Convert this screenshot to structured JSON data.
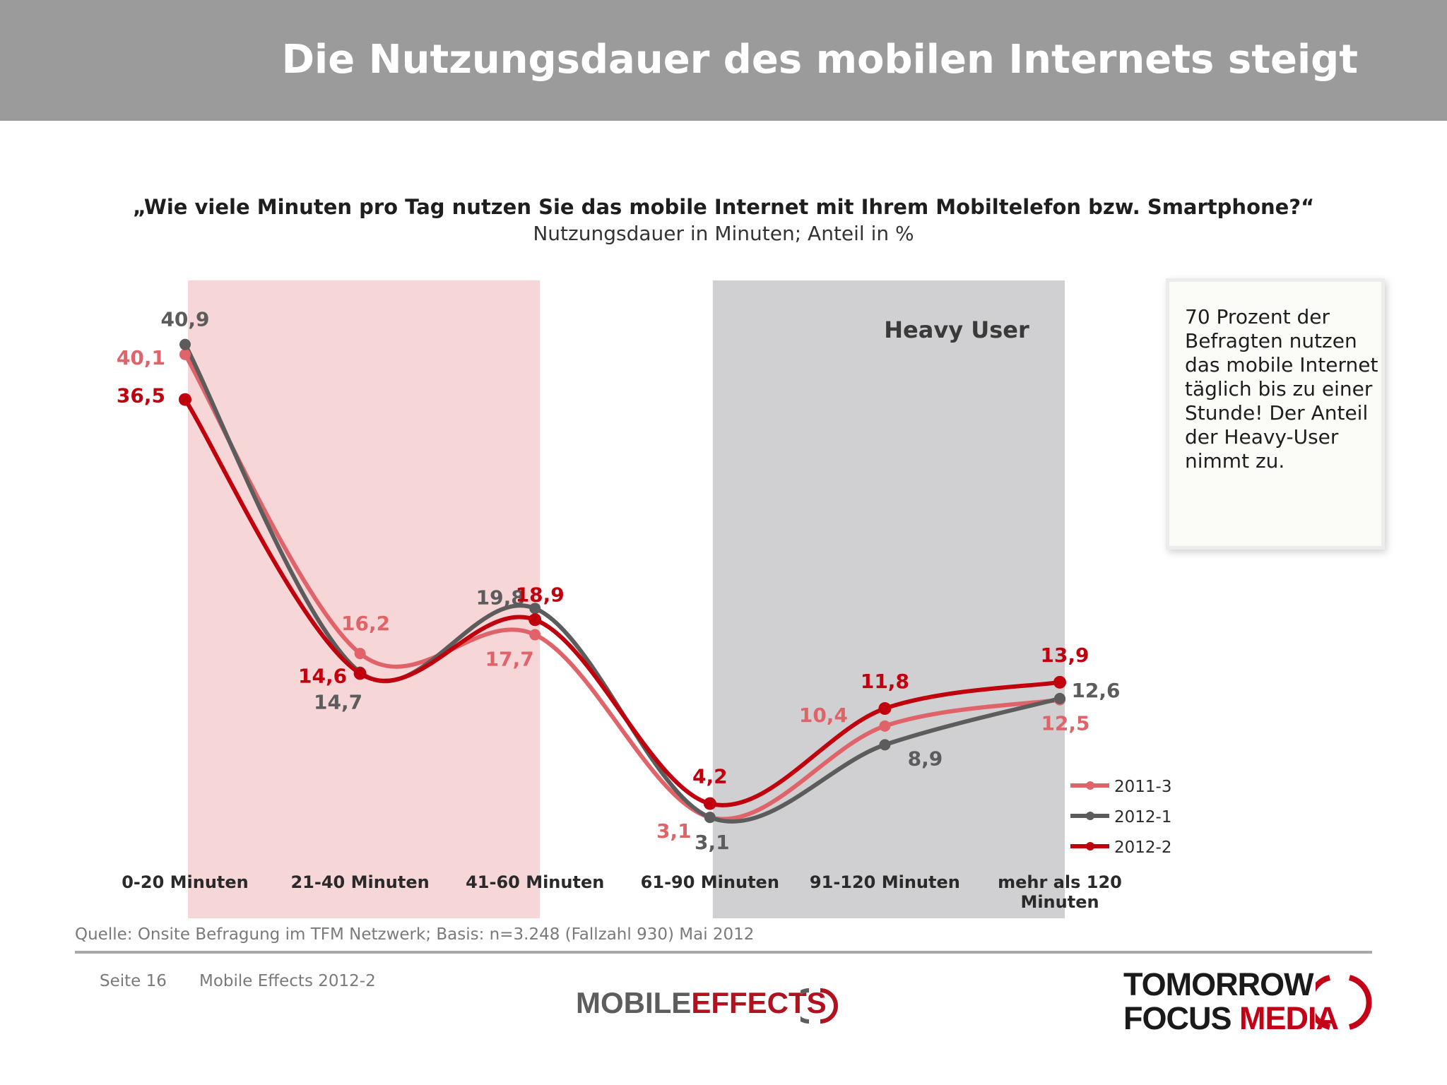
{
  "slide_title": "Die Nutzungsdauer des mobilen Internets steigt",
  "question": "„Wie viele Minuten pro Tag nutzen Sie das mobile Internet mit Ihrem Mobiltelefon bzw. Smartphone?“",
  "subtitle": "Nutzungsdauer in Minuten; Anteil in %",
  "note": "70 Prozent der Befragten nutzen das mobile Internet täglich bis zu einer Stunde! Der Anteil der Heavy-User nimmt zu.",
  "source": "Quelle: Onsite Befragung im TFM Netzwerk; Basis: n=3.248 (Fallzahl 930) Mai 2012",
  "footer": {
    "page": "Seite 16",
    "document": "Mobile Effects 2012-2"
  },
  "logos": {
    "mobile_effects": {
      "part1": "MOBILE",
      "part2": "EFFECTS"
    },
    "tomorrow_focus_media": {
      "line1": "TOMORROW",
      "line2_part1": "FOCUS",
      "line2_part2": "MEDIA"
    }
  },
  "colors": {
    "header": "#9b9b9b",
    "series_2011_3": "#e0636a",
    "series_2012_1": "#5c5c5c",
    "series_2012_2": "#c0000d",
    "band_low": "#f7d6d8",
    "band_heavy": "#d0cfd1"
  },
  "chart_data": {
    "type": "line",
    "categories": [
      "0-20 Minuten",
      "21-40 Minuten",
      "41-60 Minuten",
      "61-90 Minuten",
      "91-120 Minuten",
      "mehr als 120 Minuten"
    ],
    "series": [
      {
        "name": "2011-3",
        "color": "#e0636a",
        "values": [
          40.1,
          16.2,
          17.7,
          3.1,
          10.4,
          12.5
        ],
        "labels": [
          "40,1",
          "16,2",
          "17,7",
          "3,1",
          "10,4",
          "12,5"
        ]
      },
      {
        "name": "2012-1",
        "color": "#5c5c5c",
        "values": [
          40.9,
          14.7,
          19.8,
          3.1,
          8.9,
          12.6
        ],
        "labels": [
          "40,9",
          "14,7",
          "19,8",
          "3,1",
          "8,9",
          "12,6"
        ]
      },
      {
        "name": "2012-2",
        "color": "#c0000d",
        "values": [
          36.5,
          14.6,
          18.9,
          4.2,
          11.8,
          13.9
        ],
        "labels": [
          "36,5",
          "14,6",
          "18,9",
          "4,2",
          "11,8",
          "13,9"
        ]
      }
    ],
    "shaded_ranges": [
      {
        "from_category": 0,
        "to_category": 2,
        "label": ""
      },
      {
        "from_category": 3,
        "to_category": 5,
        "label": "Heavy User"
      }
    ],
    "legend_position": "bottom-right",
    "grid": false,
    "xlabel": "",
    "ylabel": ""
  }
}
